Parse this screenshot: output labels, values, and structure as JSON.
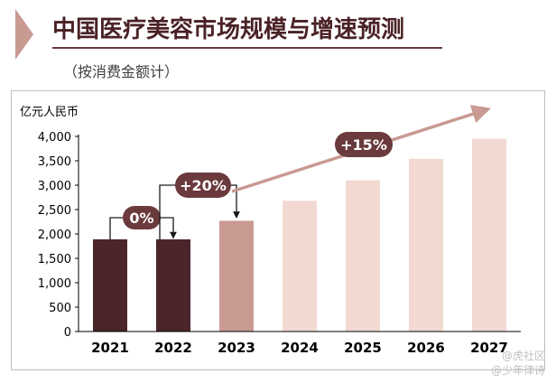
{
  "header": {
    "title": "中国医疗美容市场规模与增速预测",
    "subtitle": "（按消费金额计）"
  },
  "chart_data": {
    "type": "bar",
    "ylabel": "亿元人民币",
    "ylim": [
      0,
      4000
    ],
    "yticks": [
      0,
      500,
      1000,
      1500,
      2000,
      2500,
      3000,
      3500,
      4000
    ],
    "ytick_labels": [
      "0",
      "500",
      "1,000",
      "1,500",
      "2,000",
      "2,500",
      "3,000",
      "3,500",
      "4,000"
    ],
    "categories": [
      "2021",
      "2022",
      "2023",
      "2024",
      "2025",
      "2026",
      "2027"
    ],
    "values": [
      1890,
      1890,
      2270,
      2680,
      3100,
      3540,
      3950
    ],
    "bar_colors": [
      "#4b252a",
      "#4b252a",
      "#c99a92",
      "#f2d9d2",
      "#f2d9d2",
      "#f2d9d2",
      "#f2d9d2"
    ],
    "grid": false,
    "annotations": [
      {
        "label": "0%",
        "from": "2021",
        "to": "2022"
      },
      {
        "label": "+20%",
        "from": "2022",
        "to": "2023"
      },
      {
        "label": "+15%",
        "from": "2023",
        "to": "2027"
      }
    ],
    "annotation_color": "#6b3a3c",
    "trend_arrow_color": "#c99a92"
  },
  "watermark": {
    "line1": "@虎社区",
    "line2": "@少年律诗"
  }
}
